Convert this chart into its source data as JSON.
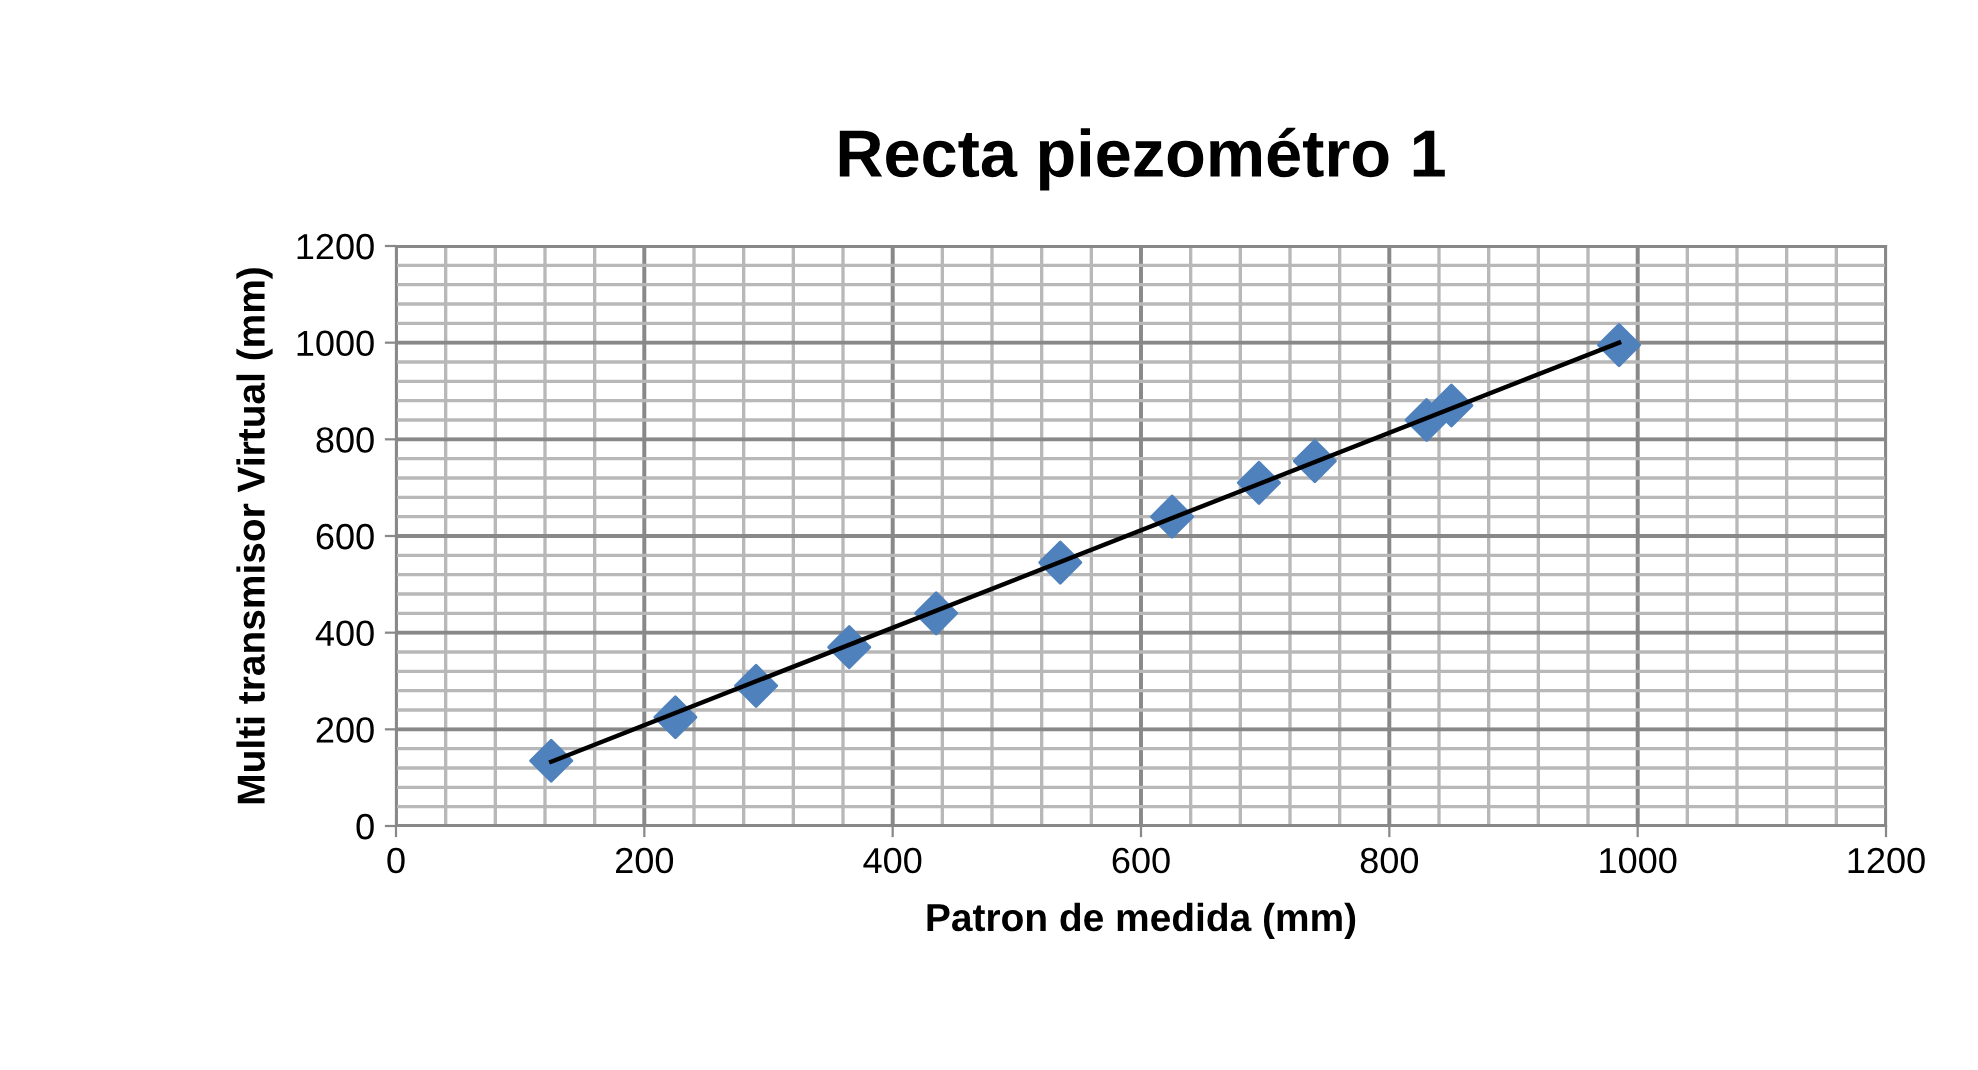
{
  "chart_data": {
    "type": "scatter",
    "title": "Recta piezométro 1",
    "xlabel": "Patron de medida (mm)",
    "ylabel": "Multi transmisor Virtual (mm)",
    "series": [
      {
        "color": "#4f81bd",
        "marker": "diamond",
        "x": [
          125,
          225,
          290,
          365,
          435,
          535,
          625,
          695,
          740,
          830,
          850,
          985
        ],
        "values": [
          135,
          225,
          290,
          370,
          440,
          545,
          640,
          710,
          755,
          840,
          870,
          995
        ]
      },
      {
        "type": "line",
        "color": "#000000",
        "marker": "none",
        "line_style": "solid",
        "x": [
          125,
          985
        ],
        "values": [
          133,
          1000
        ]
      }
    ],
    "xlim": [
      0,
      1200
    ],
    "ylim": [
      0,
      1200
    ],
    "xticks": [
      0,
      200,
      400,
      600,
      800,
      1000,
      1200
    ],
    "yticks": [
      0,
      200,
      400,
      600,
      800,
      1000,
      1200
    ],
    "grid": true,
    "legend": false
  }
}
